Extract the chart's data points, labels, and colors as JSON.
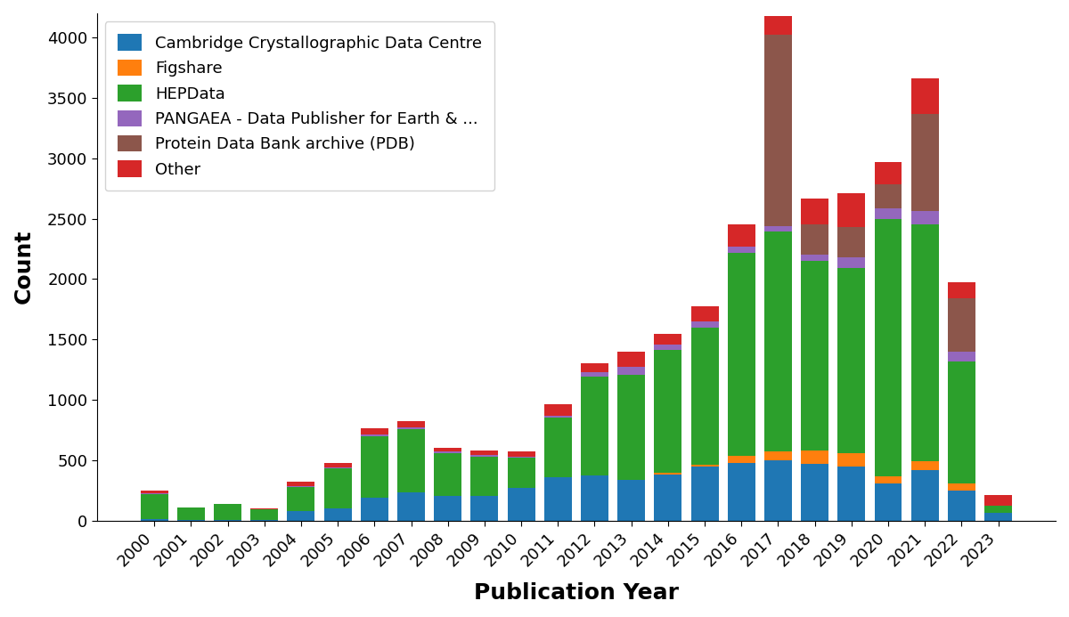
{
  "years": [
    2000,
    2001,
    2002,
    2003,
    2004,
    2005,
    2006,
    2007,
    2008,
    2009,
    2010,
    2011,
    2012,
    2013,
    2014,
    2015,
    2016,
    2017,
    2018,
    2019,
    2020,
    2021,
    2022,
    2023
  ],
  "cambridge": [
    10,
    5,
    5,
    5,
    75,
    100,
    190,
    230,
    200,
    200,
    270,
    360,
    370,
    340,
    380,
    450,
    480,
    500,
    470,
    450,
    310,
    420,
    250,
    65
  ],
  "figshare": [
    0,
    0,
    0,
    0,
    0,
    0,
    0,
    0,
    0,
    0,
    0,
    0,
    0,
    0,
    15,
    15,
    55,
    70,
    110,
    110,
    55,
    70,
    55,
    0
  ],
  "hepdata": [
    210,
    100,
    130,
    90,
    200,
    330,
    510,
    530,
    360,
    330,
    250,
    490,
    820,
    870,
    1020,
    1130,
    1680,
    1820,
    1570,
    1530,
    2130,
    1960,
    1010,
    60
  ],
  "pangaea": [
    5,
    0,
    0,
    0,
    10,
    10,
    10,
    10,
    10,
    10,
    10,
    15,
    40,
    60,
    40,
    55,
    55,
    50,
    50,
    90,
    90,
    110,
    85,
    0
  ],
  "pdb": [
    0,
    0,
    0,
    0,
    0,
    0,
    0,
    0,
    0,
    0,
    0,
    0,
    0,
    0,
    0,
    0,
    0,
    1580,
    250,
    250,
    200,
    810,
    440,
    0
  ],
  "other": [
    20,
    5,
    5,
    5,
    40,
    40,
    55,
    55,
    30,
    40,
    40,
    95,
    75,
    130,
    90,
    125,
    180,
    155,
    215,
    280,
    185,
    290,
    130,
    85
  ],
  "colors": {
    "cambridge": "#1f77b4",
    "figshare": "#ff7f0e",
    "hepdata": "#2ca02c",
    "pangaea": "#9467bd",
    "pdb": "#8c564b",
    "other": "#d62728"
  },
  "labels": {
    "cambridge": "Cambridge Crystallographic Data Centre",
    "figshare": "Figshare",
    "hepdata": "HEPData",
    "pangaea": "PANGAEA - Data Publisher for Earth & ...",
    "pdb": "Protein Data Bank archive (PDB)",
    "other": "Other"
  },
  "xlabel": "Publication Year",
  "ylabel": "Count",
  "ylim": [
    0,
    4200
  ],
  "yticks": [
    0,
    500,
    1000,
    1500,
    2000,
    2500,
    3000,
    3500,
    4000
  ]
}
